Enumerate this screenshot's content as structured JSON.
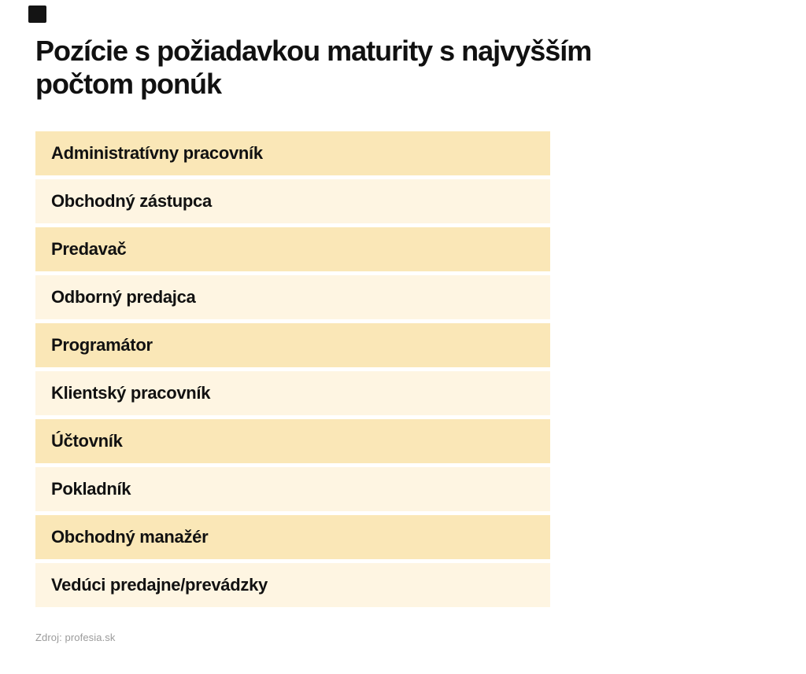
{
  "header": {
    "title": "Pozície s požiadavkou maturity s najvyšším počtom ponúk",
    "title_lines": [
      "Pozície s požiadavkou maturity s najvyšším",
      "počtom ponúk"
    ]
  },
  "footer": {
    "source_text": "Zdroj: profesia.sk"
  },
  "colors": {
    "row_odd": "#fae7b7",
    "row_even": "#fef5e2",
    "title_text": "#111111",
    "source_text": "#9b9b9b",
    "logo_mark": "#141414",
    "background": "#ffffff"
  },
  "chart_data": {
    "type": "table",
    "title": "Pozície s požiadavkou maturity s najvyšším počtom ponúk",
    "legend_position": "none",
    "grid": false,
    "categories": [
      "Administratívny pracovník",
      "Obchodný zástupca",
      "Predavač",
      "Odborný predajca",
      "Programátor",
      "Klientský pracovník",
      "Účtovník",
      "Pokladník",
      "Obchodný manažér",
      "Vedúci predajne/prevádzky"
    ],
    "source": "Zdroj: profesia.sk"
  },
  "list": {
    "items": [
      {
        "label": "Administratívny pracovník"
      },
      {
        "label": "Obchodný zástupca"
      },
      {
        "label": "Predavač"
      },
      {
        "label": "Odborný predajca"
      },
      {
        "label": "Programátor"
      },
      {
        "label": "Klientský pracovník"
      },
      {
        "label": "Účtovník"
      },
      {
        "label": "Pokladník"
      },
      {
        "label": "Obchodný manažér"
      },
      {
        "label": "Vedúci predajne/prevádzky"
      }
    ]
  }
}
